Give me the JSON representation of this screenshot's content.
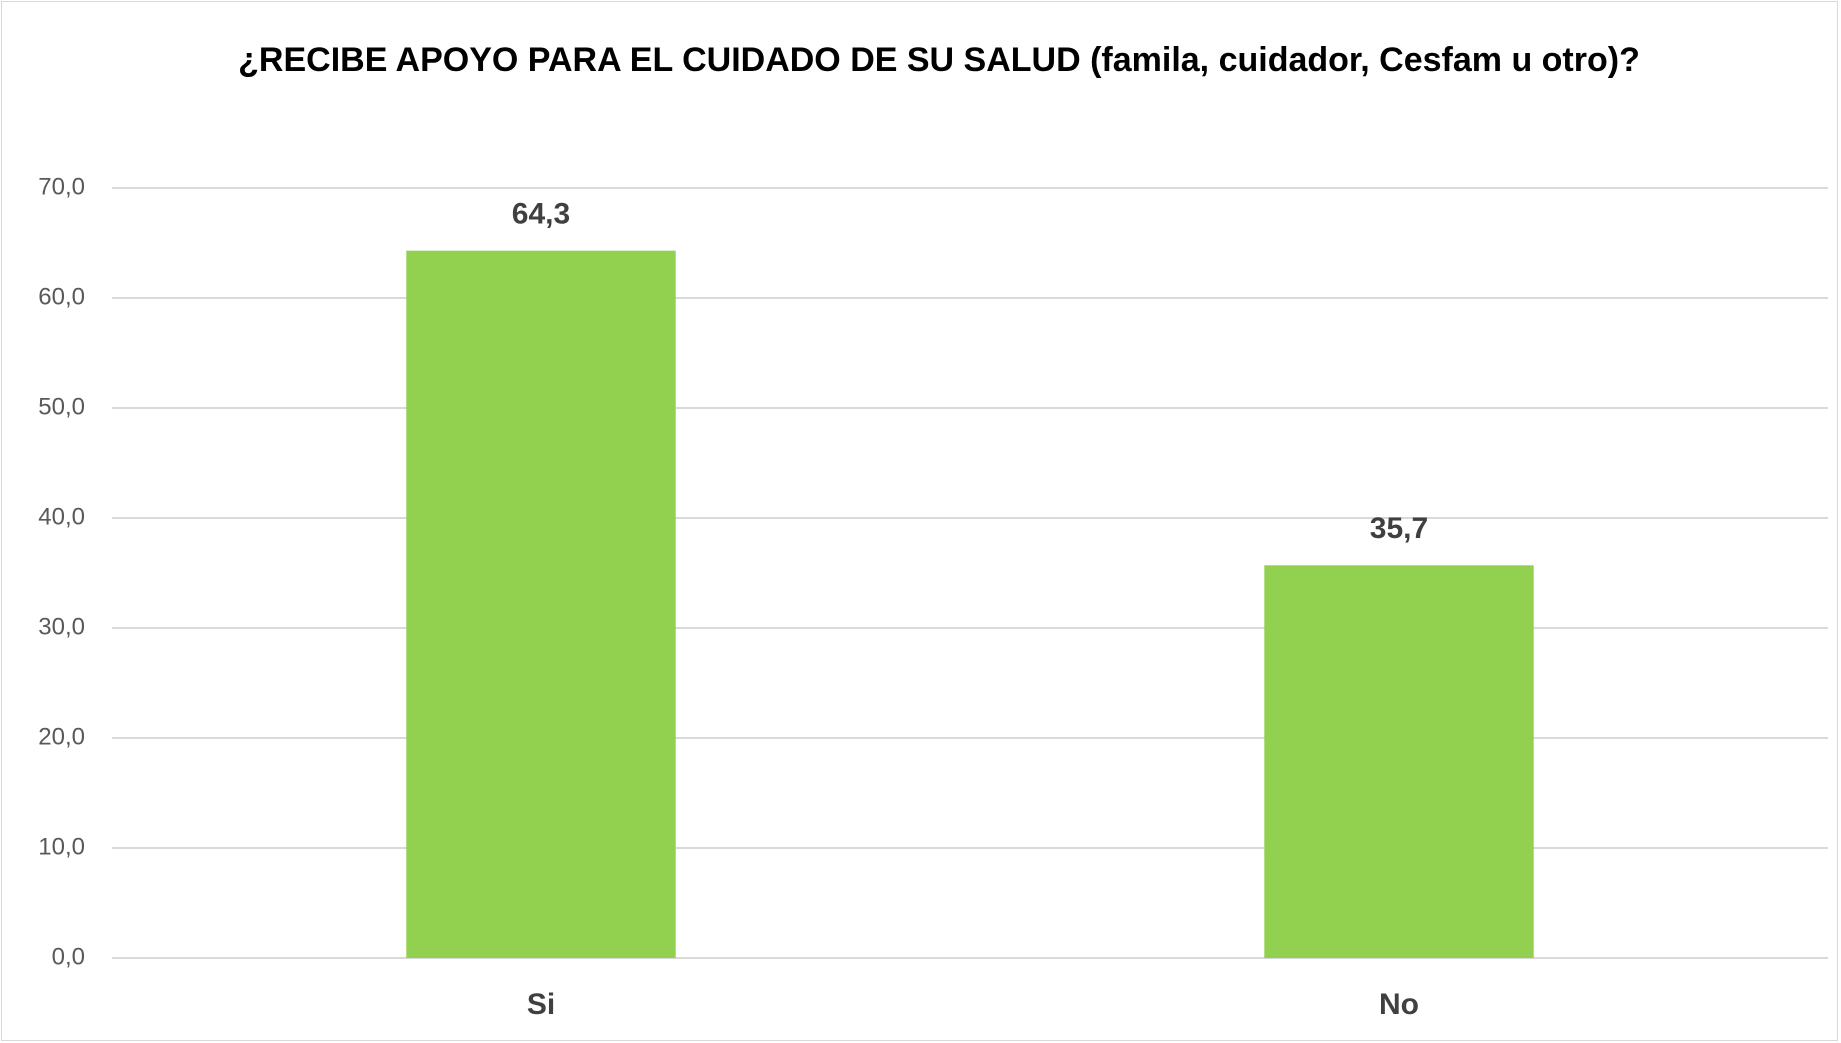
{
  "chart_data": {
    "type": "bar",
    "title": "¿RECIBE APOYO PARA EL CUIDADO DE SU SALUD (famila, cuidador, Cesfam u otro)?",
    "categories": [
      "Si",
      "No"
    ],
    "values": [
      64.3,
      35.7
    ],
    "value_labels": [
      "64,3",
      "35,7"
    ],
    "color": "#92d050",
    "ylim": [
      0,
      70
    ],
    "yticks": [
      {
        "value": 0,
        "label": "0,0"
      },
      {
        "value": 10,
        "label": "10,0"
      },
      {
        "value": 20,
        "label": "20,0"
      },
      {
        "value": 30,
        "label": "30,0"
      },
      {
        "value": 40,
        "label": "40,0"
      },
      {
        "value": 50,
        "label": "50,0"
      },
      {
        "value": 60,
        "label": "60,0"
      },
      {
        "value": 70,
        "label": "70,0"
      }
    ],
    "grid": true
  }
}
